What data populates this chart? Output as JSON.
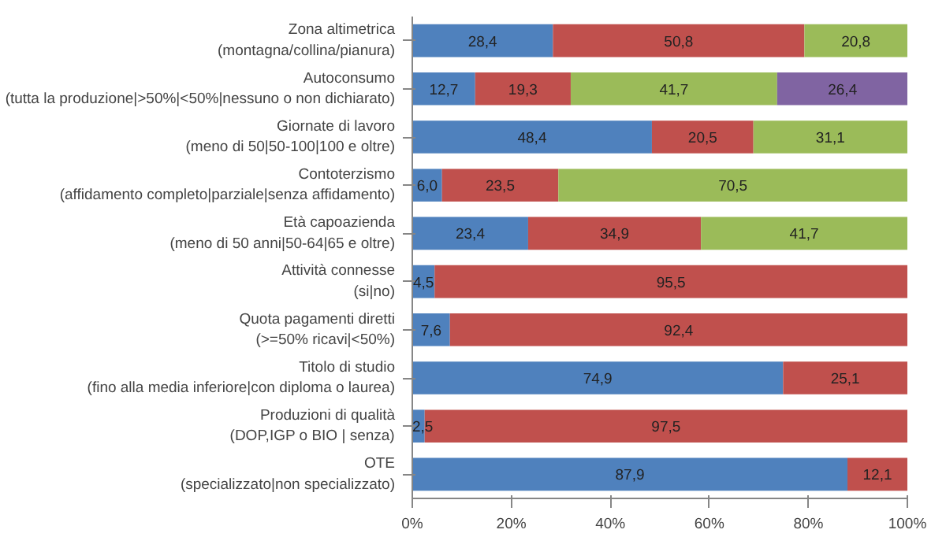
{
  "chart_data": {
    "type": "bar",
    "orientation": "horizontal",
    "stacked": true,
    "categories": [
      "Zona altimetrica\n(montagna/collina/pianura)",
      "Autoconsumo\n(tutta la produzione|>50%|<50%|nessuno o non dichiarato)",
      "Giornate di lavoro\n(meno di 50|50-100|100 e oltre)",
      "Contoterzismo\n(affidamento completo|parziale|senza affidamento)",
      "Età capoazienda\n(meno di 50 anni|50-64|65 e oltre)",
      "Attività connesse\n(si|no)",
      "Quota pagamenti diretti\n(>=50% ricavi|<50%)",
      "Titolo di studio\n(fino alla media inferiore|con diploma o laurea)",
      "Produzioni di qualità\n(DOP,IGP o BIO | senza)",
      "OTE\n(specializzato|non specializzato)"
    ],
    "series": [
      {
        "color": "#4f81bd",
        "values": [
          28.4,
          12.7,
          48.4,
          6.0,
          23.4,
          4.5,
          7.6,
          74.9,
          2.5,
          87.9
        ],
        "value_labels": [
          "28,4",
          "12,7",
          "48,4",
          "6,0",
          "23,4",
          "4,5",
          "7,6",
          "74,9",
          "2,5",
          "87,9"
        ]
      },
      {
        "color": "#c0504d",
        "values": [
          50.8,
          19.3,
          20.5,
          23.5,
          34.9,
          95.5,
          92.4,
          25.1,
          97.5,
          12.1
        ],
        "value_labels": [
          "50,8",
          "19,3",
          "20,5",
          "23,5",
          "34,9",
          "95,5",
          "92,4",
          "25,1",
          "97,5",
          "12,1"
        ]
      },
      {
        "color": "#9bbb59",
        "values": [
          20.8,
          41.7,
          31.1,
          70.5,
          41.7,
          null,
          null,
          null,
          null,
          null
        ],
        "value_labels": [
          "20,8",
          "41,7",
          "31,1",
          "70,5",
          "41,7",
          null,
          null,
          null,
          null,
          null
        ]
      },
      {
        "color": "#8064a2",
        "values": [
          null,
          26.4,
          null,
          null,
          null,
          null,
          null,
          null,
          null,
          null
        ],
        "value_labels": [
          null,
          "26,4",
          null,
          null,
          null,
          null,
          null,
          null,
          null,
          null
        ]
      }
    ],
    "xlim": [
      0,
      100
    ],
    "xticks": [
      {
        "value": 0,
        "label": "0%"
      },
      {
        "value": 20,
        "label": "20%"
      },
      {
        "value": 40,
        "label": "40%"
      },
      {
        "value": 60,
        "label": "60%"
      },
      {
        "value": 80,
        "label": "80%"
      },
      {
        "value": 100,
        "label": "100%"
      }
    ],
    "grid": false
  }
}
